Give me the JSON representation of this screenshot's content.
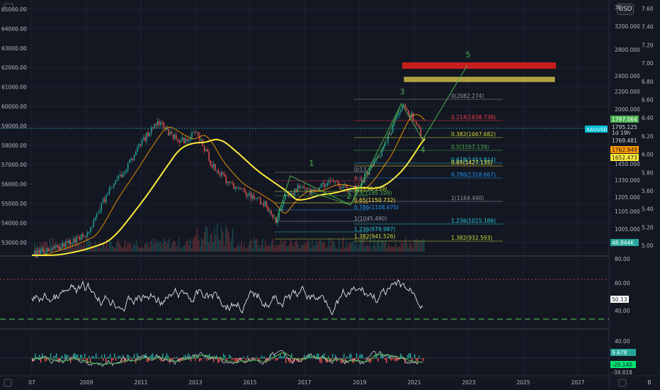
{
  "header": {
    "currency_button": "USD",
    "corner_value": "30"
  },
  "main_pane": {
    "left_axis": [
      "65000.00",
      "64000.00",
      "63000.00",
      "62000.00",
      "61000.00",
      "60000.00",
      "59000.00",
      "58000.00",
      "57000.00",
      "56000.00",
      "55000.00",
      "54000.00",
      "53000.00"
    ],
    "right_price_axis": [
      "3200.000",
      "2800.000",
      "2400.000",
      "2200.000",
      "2000.000",
      "1450.000",
      "1330.000",
      "1205.000",
      "1105.000",
      "1005.000"
    ],
    "right_ratio_axis": [
      "7.60",
      "7.40",
      "7.20",
      "7.00",
      "6.80",
      "6.60",
      "6.40",
      "6.20",
      "6.00",
      "5.80",
      "5.60",
      "5.40",
      "5.20",
      "5.00"
    ],
    "price_tags": [
      {
        "text": "1797.064",
        "bg": "#4caf50",
        "fg": "#ffffff"
      },
      {
        "text": "1795.125",
        "bg": "#131722",
        "fg": "#d1d4dc"
      },
      {
        "text": "1d 19h",
        "bg": "#131722",
        "fg": "#d1d4dc"
      },
      {
        "text": "1769.481",
        "bg": "#131722",
        "fg": "#d1d4dc"
      },
      {
        "text": "1762.949",
        "bg": "#ff9800",
        "fg": "#131722"
      },
      {
        "text": "1652.473",
        "bg": "#ffeb3b",
        "fg": "#131722"
      },
      {
        "text": "48.844K",
        "bg": "#26a69a",
        "fg": "#ffffff"
      }
    ],
    "symbol_tag": "XAUUSD",
    "fib_right": [
      {
        "text": "0(2082.274)",
        "color": "#9598a1"
      },
      {
        "text": "0.214(1838.738)",
        "color": "#f23645"
      },
      {
        "text": "0.382(1667.682)",
        "color": "#cddc39"
      },
      {
        "text": "0.5(1557.139)",
        "color": "#4caf50"
      },
      {
        "text": "0.618(1453.814)",
        "color": "#26c6da"
      },
      {
        "text": "0.65(1427.135)",
        "color": "#ffeb3b"
      },
      {
        "text": "0.786(1318.667)",
        "color": "#2196f3"
      },
      {
        "text": "1(1164.440)",
        "color": "#9598a1"
      },
      {
        "text": "1.236(1015.186)",
        "color": "#26c6da"
      },
      {
        "text": "1.382(932.593)",
        "color": "#cddc39"
      }
    ],
    "fib_left": [
      {
        "text": "0(13",
        "color": "#9598a1"
      },
      {
        "text": "0.2",
        "color": "#f23645"
      },
      {
        "text": "5(1238.539)",
        "color": "#cddc39"
      },
      {
        "text": "0.5(1199.109)",
        "color": "#4caf50"
      },
      {
        "text": "0.65(1150.732)",
        "color": "#ffeb3b"
      },
      {
        "text": "0.786(1108.670)",
        "color": "#2196f3"
      },
      {
        "text": "1(1045.490)",
        "color": "#9598a1"
      },
      {
        "text": "1.236(979.987)",
        "color": "#26c6da"
      },
      {
        "text": "1.382(941.526)",
        "color": "#cddc39"
      }
    ],
    "wave_labels": [
      "1",
      "2",
      "3",
      "4",
      "5"
    ]
  },
  "rsi_pane": {
    "axis": [
      "80.00",
      "60.00",
      "40.00"
    ],
    "value_tag": "50.13",
    "overbought": 66,
    "oversold": 33
  },
  "macd_pane": {
    "axis": [
      "40.00"
    ],
    "value_tags": [
      "9.678",
      "-20.140",
      "-39.818"
    ]
  },
  "time_axis": {
    "labels": [
      "07",
      "2009",
      "2011",
      "2013",
      "2015",
      "2017",
      "2019",
      "2021",
      "2023",
      "2025",
      "2027"
    ],
    "corner_b": "B"
  },
  "colors": {
    "bg": "#131722",
    "up": "#26a69a",
    "down": "#ef5350",
    "ma_yellow": "#ffeb3b",
    "wave": "#4caf50",
    "box_red": "#c81e1e",
    "box_yellow": "#d4c24a"
  },
  "chart_data": {
    "type": "line",
    "symbol": "XAUUSD",
    "title": "",
    "x": [
      "2007",
      "2009",
      "2011",
      "2013",
      "2015",
      "2017",
      "2019",
      "2021",
      "2023",
      "2025",
      "2027"
    ],
    "series": [
      {
        "name": "XAUUSD",
        "values": [
          650,
          900,
          1850,
          1600,
          1150,
          1250,
          1280,
          2070,
          1797,
          null,
          null
        ]
      }
    ],
    "ylim": [
      932,
      3200
    ],
    "log_scale": true,
    "grid": true
  }
}
